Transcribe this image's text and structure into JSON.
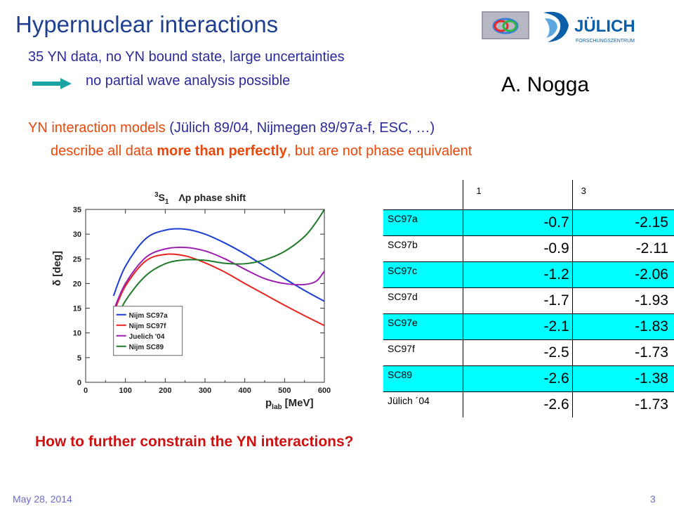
{
  "slide": {
    "title": "Hypernuclear interactions",
    "line1": "35 YN data, no YN bound state, large uncertainties",
    "line2": "no partial wave analysis possible",
    "author": "A. Nogga",
    "line3_prefix": "YN interaction models",
    "line3_paren": "(Jülich 89/04, Nijmegen 89/97a-f, ESC, …)",
    "line4_a": "describe all data ",
    "line4_bold": "more than perfectly",
    "line4_b": ", but are not phase equivalent",
    "question": "How to further constrain the YN interactions?",
    "footer_date": "May 28, 2014",
    "page_number": "3",
    "logo_text": "JÜLICH",
    "logo_subtext": "FORSCHUNGSZENTRUM"
  },
  "table": {
    "headers": [
      "",
      "1",
      "3"
    ],
    "rows": [
      {
        "model": "SC97a",
        "v1": "-0.7",
        "v3": "-2.15",
        "highlight": true
      },
      {
        "model": "SC97b",
        "v1": "-0.9",
        "v3": "-2.11",
        "highlight": false
      },
      {
        "model": "SC97c",
        "v1": "-1.2",
        "v3": "-2.06",
        "highlight": true
      },
      {
        "model": "SC97d",
        "v1": "-1.7",
        "v3": "-1.93",
        "highlight": false
      },
      {
        "model": "SC97e",
        "v1": "-2.1",
        "v3": "-1.83",
        "highlight": true
      },
      {
        "model": "SC97f",
        "v1": "-2.5",
        "v3": "-1.73",
        "highlight": false
      },
      {
        "model": "SC89",
        "v1": "-2.6",
        "v3": "-1.38",
        "highlight": true
      },
      {
        "model": "Jülich ´04",
        "v1": "-2.6",
        "v3": "-1.73",
        "highlight": false
      }
    ]
  },
  "chart_data": {
    "type": "line",
    "title_state": "3S1",
    "title_state_sup": "3",
    "title_state_main": "S",
    "title_state_sub": "1",
    "title_rest": "Λp phase shift",
    "xlabel_main": "p",
    "xlabel_sub": "lab",
    "xlabel_unit": "[MeV]",
    "ylabel": "δ [deg]",
    "xlim": [
      0,
      600
    ],
    "ylim": [
      0,
      35
    ],
    "xticks": [
      0,
      100,
      200,
      300,
      400,
      500,
      600
    ],
    "yticks": [
      0,
      5,
      10,
      15,
      20,
      25,
      30,
      35
    ],
    "legend_position": "lower-left",
    "series": [
      {
        "name": "Nijm SC97a",
        "color": "#1c3ed0",
        "x": [
          70,
          100,
          150,
          200,
          250,
          300,
          350,
          400,
          450,
          500,
          550,
          600
        ],
        "y": [
          17.5,
          23.5,
          29.0,
          30.8,
          31.0,
          30.0,
          28.2,
          26.0,
          23.5,
          21.0,
          18.6,
          16.4
        ]
      },
      {
        "name": "Nijm SC97f",
        "color": "#e8231c",
        "x": [
          70,
          100,
          150,
          200,
          250,
          300,
          350,
          400,
          450,
          500,
          550,
          600
        ],
        "y": [
          14.0,
          19.5,
          24.5,
          25.9,
          25.6,
          24.2,
          22.3,
          20.0,
          17.8,
          15.6,
          13.5,
          11.5
        ]
      },
      {
        "name": "Juelich '04",
        "color": "#9b1fb0",
        "x": [
          70,
          100,
          150,
          200,
          250,
          300,
          350,
          400,
          450,
          500,
          550,
          580,
          600
        ],
        "y": [
          14.5,
          20.0,
          25.2,
          27.0,
          27.3,
          26.6,
          25.0,
          22.9,
          21.0,
          20.0,
          19.8,
          20.5,
          22.5
        ]
      },
      {
        "name": "Nijm SC89",
        "color": "#1f7a2a",
        "x": [
          70,
          100,
          150,
          200,
          250,
          300,
          350,
          400,
          450,
          500,
          550,
          580,
          600
        ],
        "y": [
          11.5,
          16.5,
          21.5,
          24.0,
          24.8,
          24.7,
          24.1,
          24.0,
          24.8,
          26.5,
          29.5,
          32.5,
          35.0
        ]
      }
    ]
  }
}
